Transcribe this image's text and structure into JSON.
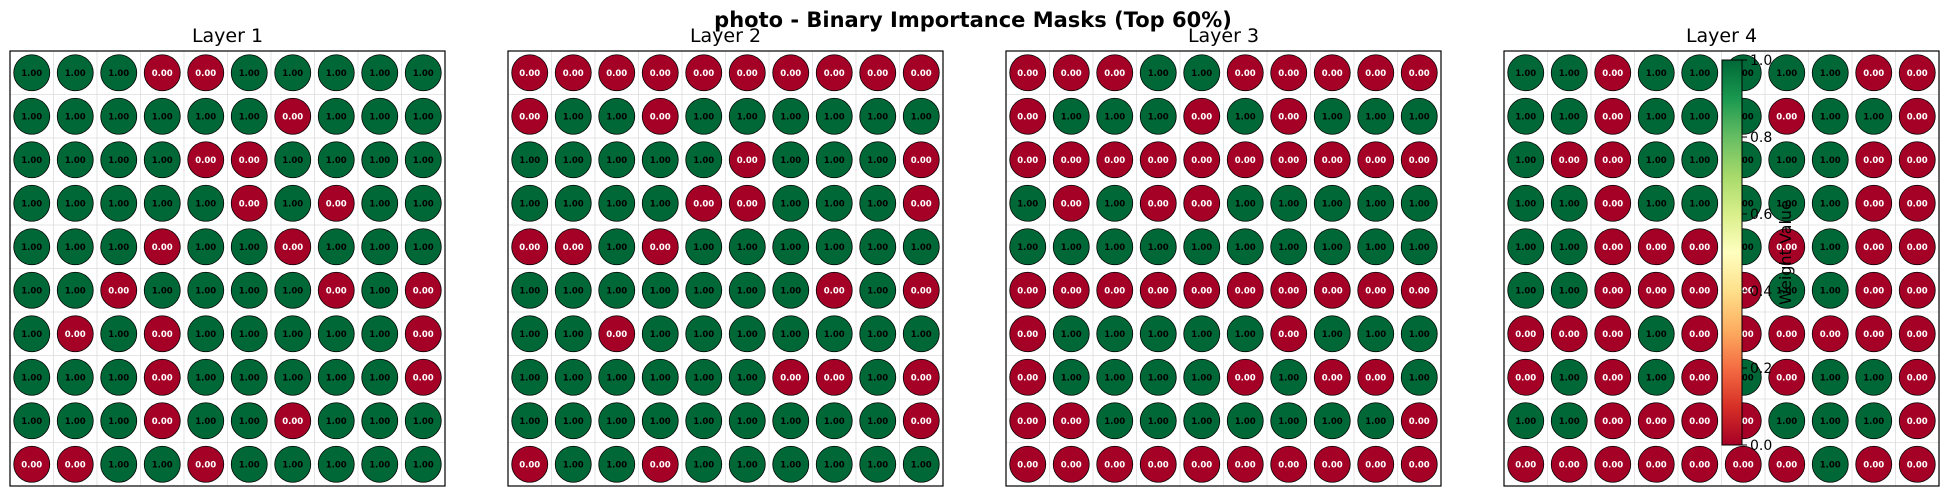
{
  "title": "photo - Binary Importance Masks (Top 60%)",
  "colors": {
    "one": "#006837",
    "zero": "#a50026",
    "circle_stroke": "#000000",
    "grid": "#dddddd",
    "cmap": [
      "#a50026",
      "#d73027",
      "#f46d43",
      "#fdae61",
      "#fee08b",
      "#ffffbf",
      "#d9ef8b",
      "#a6d96a",
      "#66bd63",
      "#1a9850",
      "#006837"
    ]
  },
  "chart_data": [
    {
      "type": "heatmap",
      "title": "Layer 1",
      "values": [
        [
          1,
          1,
          1,
          0,
          0,
          1,
          1,
          1,
          1,
          1
        ],
        [
          1,
          1,
          1,
          1,
          1,
          1,
          0,
          1,
          1,
          1
        ],
        [
          1,
          1,
          1,
          1,
          0,
          0,
          1,
          1,
          1,
          1
        ],
        [
          1,
          1,
          1,
          1,
          1,
          0,
          1,
          0,
          1,
          1
        ],
        [
          1,
          1,
          1,
          0,
          1,
          1,
          0,
          1,
          1,
          1
        ],
        [
          1,
          1,
          0,
          1,
          1,
          1,
          1,
          0,
          1,
          0
        ],
        [
          1,
          0,
          1,
          0,
          1,
          1,
          1,
          1,
          1,
          0
        ],
        [
          1,
          1,
          1,
          0,
          1,
          1,
          1,
          1,
          1,
          0
        ],
        [
          1,
          1,
          1,
          0,
          1,
          1,
          0,
          1,
          1,
          1
        ],
        [
          0,
          0,
          1,
          1,
          0,
          1,
          1,
          1,
          1,
          1
        ]
      ]
    },
    {
      "type": "heatmap",
      "title": "Layer 2",
      "values": [
        [
          0,
          0,
          0,
          0,
          0,
          0,
          0,
          0,
          0,
          0
        ],
        [
          0,
          1,
          1,
          0,
          1,
          1,
          1,
          1,
          1,
          1
        ],
        [
          1,
          1,
          1,
          1,
          1,
          0,
          1,
          1,
          1,
          0
        ],
        [
          1,
          1,
          1,
          1,
          0,
          0,
          1,
          1,
          1,
          0
        ],
        [
          0,
          0,
          1,
          0,
          1,
          1,
          1,
          1,
          1,
          1
        ],
        [
          1,
          1,
          1,
          1,
          1,
          1,
          1,
          0,
          1,
          0
        ],
        [
          1,
          1,
          0,
          1,
          1,
          1,
          1,
          1,
          1,
          1
        ],
        [
          1,
          1,
          1,
          1,
          1,
          1,
          0,
          0,
          1,
          0
        ],
        [
          1,
          1,
          1,
          1,
          1,
          1,
          1,
          1,
          1,
          0
        ],
        [
          0,
          1,
          1,
          0,
          1,
          1,
          1,
          1,
          1,
          1
        ]
      ]
    },
    {
      "type": "heatmap",
      "title": "Layer 3",
      "values": [
        [
          0,
          0,
          0,
          1,
          1,
          0,
          0,
          0,
          0,
          0
        ],
        [
          0,
          1,
          1,
          1,
          0,
          1,
          0,
          1,
          1,
          1
        ],
        [
          0,
          0,
          0,
          0,
          0,
          0,
          0,
          0,
          0,
          0
        ],
        [
          1,
          0,
          1,
          0,
          0,
          1,
          1,
          1,
          1,
          1
        ],
        [
          1,
          1,
          1,
          1,
          1,
          1,
          1,
          1,
          1,
          1
        ],
        [
          0,
          0,
          0,
          0,
          0,
          0,
          0,
          0,
          0,
          0
        ],
        [
          0,
          1,
          1,
          1,
          1,
          1,
          0,
          1,
          1,
          1
        ],
        [
          0,
          1,
          1,
          1,
          1,
          0,
          1,
          0,
          0,
          1
        ],
        [
          0,
          0,
          1,
          1,
          1,
          1,
          1,
          1,
          1,
          0
        ],
        [
          0,
          0,
          0,
          0,
          0,
          0,
          0,
          0,
          0,
          0
        ]
      ]
    },
    {
      "type": "heatmap",
      "title": "Layer 4",
      "values": [
        [
          1,
          1,
          0,
          1,
          1,
          1,
          1,
          1,
          0,
          0
        ],
        [
          1,
          1,
          0,
          1,
          1,
          1,
          0,
          1,
          1,
          0
        ],
        [
          1,
          0,
          0,
          1,
          1,
          1,
          1,
          1,
          0,
          0
        ],
        [
          1,
          1,
          0,
          1,
          1,
          1,
          1,
          1,
          0,
          0
        ],
        [
          1,
          1,
          0,
          0,
          0,
          1,
          0,
          1,
          0,
          0
        ],
        [
          1,
          1,
          0,
          0,
          0,
          0,
          1,
          1,
          0,
          0
        ],
        [
          0,
          0,
          0,
          1,
          0,
          0,
          0,
          0,
          0,
          0
        ],
        [
          0,
          1,
          0,
          1,
          0,
          1,
          0,
          1,
          1,
          0
        ],
        [
          1,
          1,
          0,
          0,
          0,
          0,
          1,
          1,
          1,
          0
        ],
        [
          0,
          0,
          0,
          0,
          0,
          0,
          0,
          1,
          0,
          0
        ]
      ]
    }
  ],
  "colorbar": {
    "label": "Weight Value",
    "ticks": [
      "0.0",
      "0.2",
      "0.4",
      "0.6",
      "0.8",
      "1.0"
    ],
    "range": [
      0,
      1
    ]
  }
}
